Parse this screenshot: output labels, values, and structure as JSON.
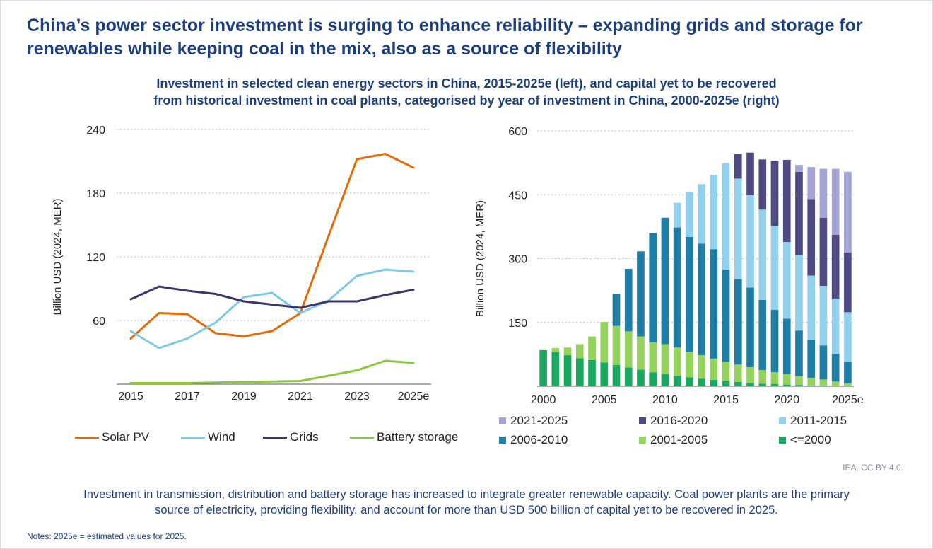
{
  "title": "China’s power sector investment is surging to enhance reliability – expanding grids and storage for renewables while keeping coal in the mix, also as a source of flexibility",
  "subtitle_line1": "Investment in selected clean energy sectors in China, 2015-2025e (left), and capital yet to be recovered",
  "subtitle_line2": "from historical investment in coal plants, categorised by year of investment in China, 2000-2025e (right)",
  "source": "IEA. CC BY 4.0.",
  "caption_line1": "Investment in transmission, distribution and battery storage has increased to integrate greater renewable capacity. Coal power plants are the primary",
  "caption_line2": "source of electricity, providing flexibility, and account for more than USD 500 billion of capital yet to be recovered in 2025.",
  "notes": "Notes: 2025e = estimated values for 2025.",
  "colors": {
    "solar": "#e36c0a",
    "wind": "#7ec8e3",
    "grids": "#3d3768",
    "battery": "#8cc63f",
    "c2021": "#a3a6d4",
    "c2016": "#4e4a83",
    "c2011": "#92d1ee",
    "c2006": "#1f7da6",
    "c2001": "#94d35b",
    "c2000": "#1aa860"
  },
  "chart_data": [
    {
      "type": "line",
      "ylabel": "Billion USD (2024, MER)",
      "ylim": [
        0,
        240
      ],
      "yticks": [
        "60",
        "120",
        "180",
        "240"
      ],
      "x": [
        2015,
        2016,
        2017,
        2018,
        2019,
        2020,
        2021,
        2022,
        2023,
        2024,
        2025
      ],
      "xtick_labels": [
        "2015",
        "2017",
        "2019",
        "2021",
        "2023",
        "2025e"
      ],
      "grid": true,
      "legend_position": "bottom",
      "series": [
        {
          "name": "Solar PV",
          "color_key": "solar",
          "values": [
            43,
            67,
            66,
            48,
            45,
            50,
            67,
            140,
            212,
            217,
            204
          ]
        },
        {
          "name": "Wind",
          "color_key": "wind",
          "values": [
            50,
            34,
            43,
            58,
            82,
            86,
            67,
            79,
            102,
            108,
            106
          ]
        },
        {
          "name": "Grids",
          "color_key": "grids",
          "values": [
            80,
            92,
            88,
            85,
            78,
            75,
            72,
            78,
            78,
            84,
            89
          ]
        },
        {
          "name": "Battery storage",
          "color_key": "battery",
          "values": [
            1,
            1,
            1,
            1.5,
            2,
            2.5,
            3,
            8,
            13,
            22,
            20
          ]
        }
      ]
    },
    {
      "type": "bar",
      "stacked": true,
      "ylabel": "Billion USD (2024, MER)",
      "ylim": [
        0,
        600
      ],
      "yticks": [
        "150",
        "300",
        "450",
        "600"
      ],
      "categories": [
        2000,
        2001,
        2002,
        2003,
        2004,
        2005,
        2006,
        2007,
        2008,
        2009,
        2010,
        2011,
        2012,
        2013,
        2014,
        2015,
        2016,
        2017,
        2018,
        2019,
        2020,
        2021,
        2022,
        2023,
        2024,
        2025
      ],
      "xtick_labels": [
        "2000",
        "2005",
        "2010",
        "2015",
        "2020",
        "2025e"
      ],
      "grid": true,
      "legend_position": "bottom",
      "series": [
        {
          "name": "<=2000",
          "color_key": "c2000",
          "values": [
            85,
            80,
            73,
            66,
            62,
            56,
            50,
            44,
            39,
            33,
            29,
            25,
            21,
            18,
            15,
            12,
            10,
            8,
            6,
            5,
            4,
            3,
            2,
            2,
            1,
            1
          ]
        },
        {
          "name": "2001-2005",
          "color_key": "c2001",
          "values": [
            0,
            10,
            18,
            33,
            55,
            95,
            92,
            85,
            78,
            70,
            70,
            66,
            60,
            55,
            50,
            45,
            41,
            37,
            32,
            28,
            25,
            21,
            18,
            14,
            10,
            6
          ]
        },
        {
          "name": "2006-2010",
          "color_key": "c2006",
          "values": [
            0,
            0,
            0,
            0,
            0,
            0,
            75,
            147,
            200,
            257,
            297,
            282,
            270,
            262,
            257,
            217,
            200,
            187,
            165,
            147,
            130,
            107,
            90,
            80,
            65,
            50
          ]
        },
        {
          "name": "2011-2015",
          "color_key": "c2011",
          "values": [
            0,
            0,
            0,
            0,
            0,
            0,
            0,
            0,
            0,
            0,
            0,
            58,
            105,
            140,
            175,
            250,
            237,
            217,
            212,
            197,
            180,
            178,
            150,
            140,
            130,
            117
          ]
        },
        {
          "name": "2016-2020",
          "color_key": "c2016",
          "values": [
            0,
            0,
            0,
            0,
            0,
            0,
            0,
            0,
            0,
            0,
            0,
            0,
            0,
            0,
            0,
            0,
            58,
            100,
            118,
            153,
            193,
            195,
            180,
            160,
            150,
            140
          ]
        },
        {
          "name": "2021-2025",
          "color_key": "c2021",
          "values": [
            0,
            0,
            0,
            0,
            0,
            0,
            0,
            0,
            0,
            0,
            0,
            0,
            0,
            0,
            0,
            0,
            0,
            0,
            0,
            0,
            0,
            16,
            75,
            115,
            155,
            190
          ]
        }
      ]
    }
  ],
  "left_legend": [
    {
      "label": "Solar PV",
      "color_key": "solar"
    },
    {
      "label": "Wind",
      "color_key": "wind"
    },
    {
      "label": "Grids",
      "color_key": "grids"
    },
    {
      "label": "Battery storage",
      "color_key": "battery"
    }
  ],
  "right_legend": [
    {
      "label": "2021-2025",
      "color_key": "c2021"
    },
    {
      "label": "2016-2020",
      "color_key": "c2016"
    },
    {
      "label": "2011-2015",
      "color_key": "c2011"
    },
    {
      "label": "2006-2010",
      "color_key": "c2006"
    },
    {
      "label": "2001-2005",
      "color_key": "c2001"
    },
    {
      "label": "<=2000",
      "color_key": "c2000"
    }
  ]
}
